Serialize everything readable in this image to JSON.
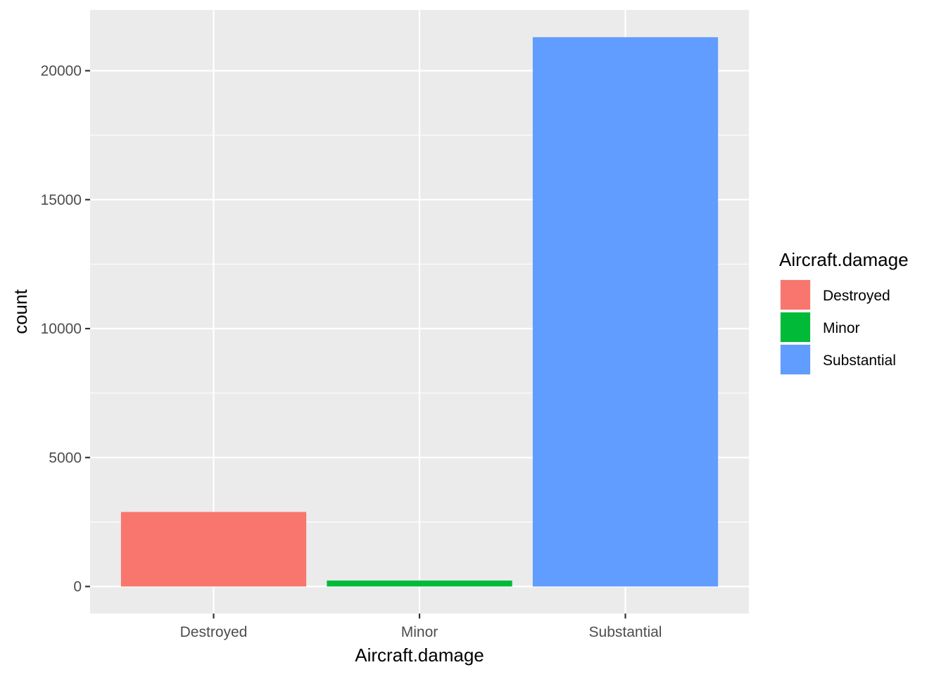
{
  "chart_data": {
    "type": "bar",
    "categories": [
      "Destroyed",
      "Minor",
      "Substantial"
    ],
    "values": [
      2890,
      230,
      21300
    ],
    "xlabel": "Aircraft.damage",
    "ylabel": "count",
    "ylim": [
      -1050,
      22360
    ],
    "yticks": [
      0,
      5000,
      10000,
      15000,
      20000
    ],
    "grid": true,
    "legend": {
      "title": "Aircraft.damage",
      "position": "right",
      "entries": [
        "Destroyed",
        "Minor",
        "Substantial"
      ]
    },
    "colors": [
      "#F8766D",
      "#00BA38",
      "#619CFF"
    ],
    "panel_background": "#EBEBEB",
    "grid_color": "#FFFFFF"
  }
}
